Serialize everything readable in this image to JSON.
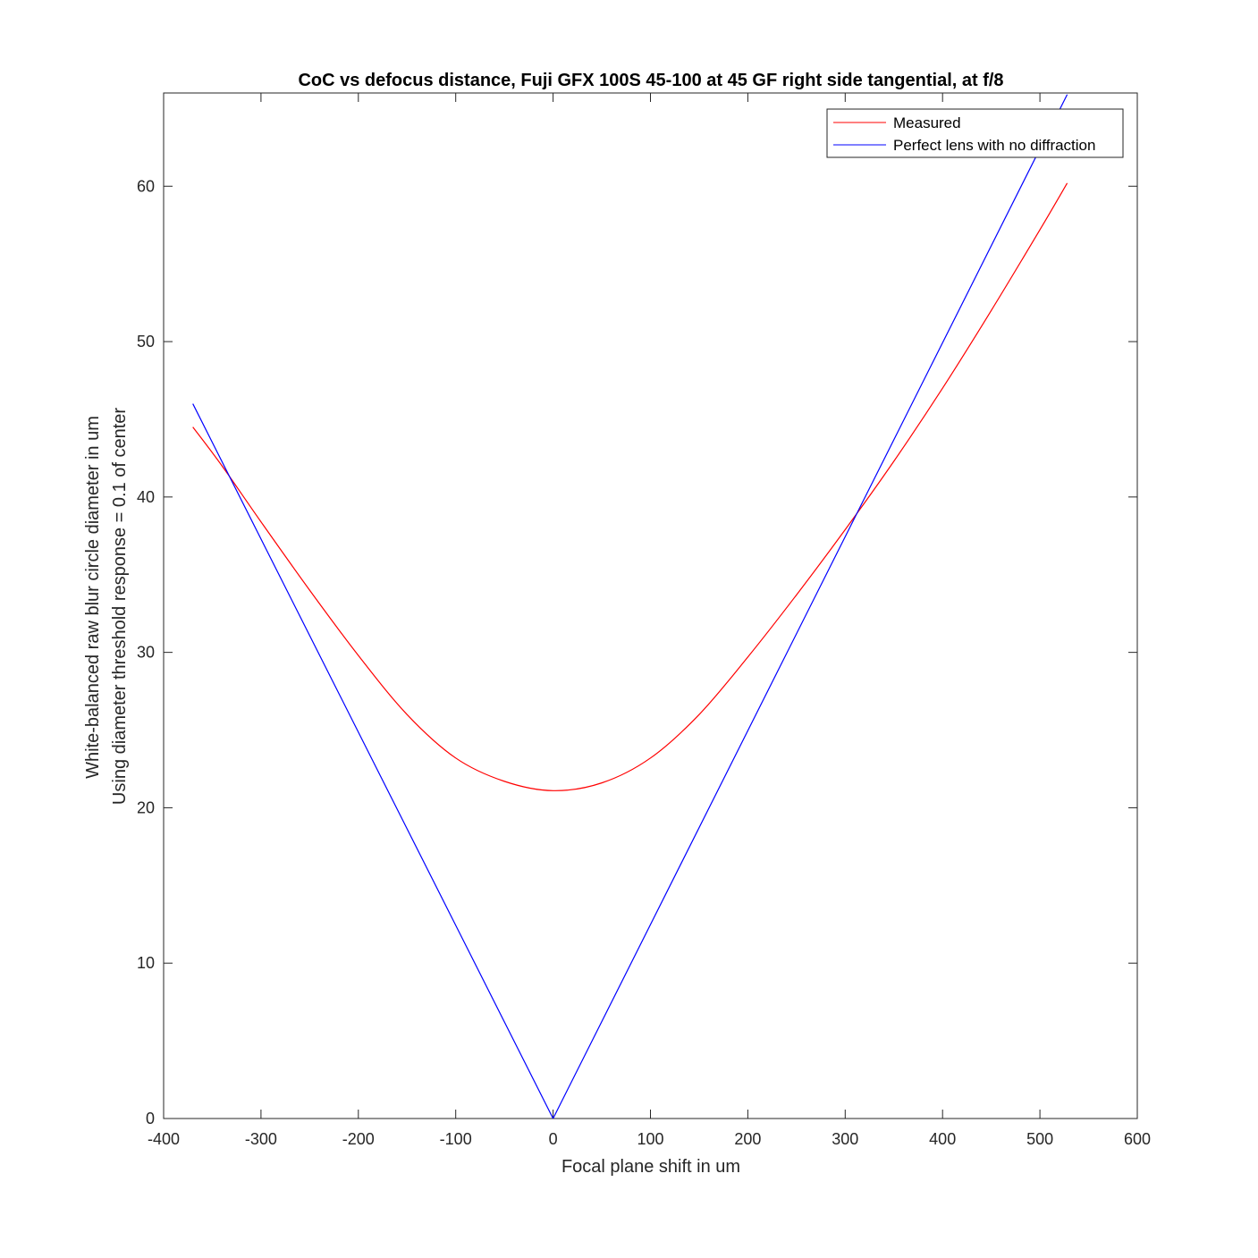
{
  "chart_data": {
    "type": "line",
    "title": "CoC vs defocus distance, Fuji GFX 100S 45-100 at 45 GF right side tangential, at f/8",
    "xlabel": "Focal plane shift in um",
    "ylabel": [
      "White-balanced raw blur circle diameter in um",
      "Using diameter threshold response = 0.1 of center"
    ],
    "xlim": [
      -400,
      600
    ],
    "ylim": [
      0,
      66
    ],
    "xticks": [
      -400,
      -300,
      -200,
      -100,
      0,
      100,
      200,
      300,
      400,
      500,
      600
    ],
    "yticks": [
      0,
      10,
      20,
      30,
      40,
      50,
      60
    ],
    "grid": false,
    "legend_position": "top-right",
    "series": [
      {
        "name": "Measured",
        "color": "#ff0000",
        "x": [
          -370,
          -340,
          -300,
          -250,
          -200,
          -150,
          -100,
          -50,
          0,
          50,
          100,
          150,
          200,
          250,
          300,
          350,
          400,
          450,
          500,
          528
        ],
        "y": [
          44.5,
          42.0,
          38.4,
          34.0,
          29.8,
          26.0,
          23.2,
          21.7,
          21.1,
          21.6,
          23.2,
          26.0,
          29.7,
          33.7,
          37.9,
          42.3,
          47.0,
          52.0,
          57.2,
          60.2
        ]
      },
      {
        "name": "Perfect lens with no diffraction",
        "color": "#0000ff",
        "x": [
          -370,
          0,
          528
        ],
        "y": [
          46.0,
          0,
          65.9
        ]
      }
    ]
  }
}
